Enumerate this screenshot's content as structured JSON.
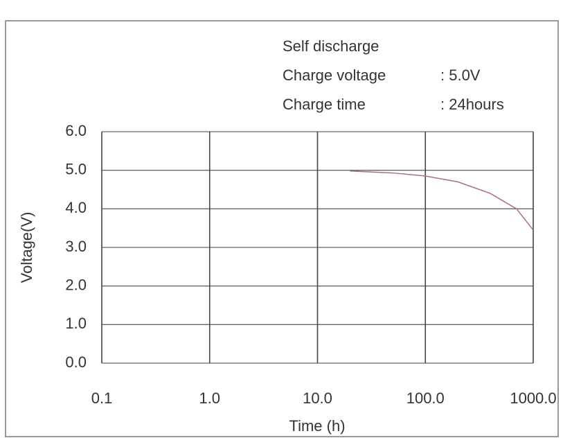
{
  "chart_data": {
    "type": "line",
    "annotations": [
      "Self discharge",
      "Charge voltage",
      ": 5.0V",
      "Charge time",
      ": 24hours"
    ],
    "xlabel": "Time (h)",
    "ylabel": "Voltage(V)",
    "xscale": "log",
    "grid": true,
    "xlim": [
      0.1,
      1000
    ],
    "ylim": [
      0,
      6
    ],
    "xticks": [
      0.1,
      {
        "value": 1,
        "label": "1.0"
      },
      {
        "value": 10,
        "label": "10.0"
      },
      {
        "value": 100,
        "label": "100.0"
      },
      {
        "value": 1000,
        "label": "1000.0"
      }
    ],
    "yticks": [
      {
        "value": 0,
        "label": "0.0"
      },
      {
        "value": 1,
        "label": "1.0"
      },
      {
        "value": 2,
        "label": "2.0"
      },
      {
        "value": 3,
        "label": "3.0"
      },
      {
        "value": 4,
        "label": "4.0"
      },
      {
        "value": 5,
        "label": "5.0"
      },
      {
        "value": 6,
        "label": "6.0"
      }
    ],
    "series": [
      {
        "name": "Self discharge",
        "color": "#a87070",
        "x": [
          20,
          50,
          100,
          200,
          400,
          700,
          1000
        ],
        "values": [
          4.98,
          4.93,
          4.85,
          4.7,
          4.4,
          4.0,
          3.45
        ]
      }
    ]
  }
}
